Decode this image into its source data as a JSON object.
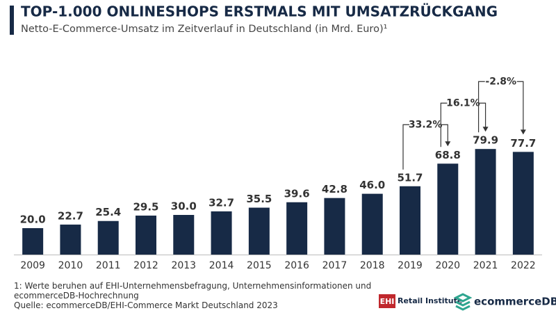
{
  "chart_data": {
    "type": "bar",
    "title": "TOP-1.000 ONLINESHOPS ERSTMALS MIT UMSATZRÜCKGANG",
    "subtitle": "Netto-E-Commerce-Umsatz im Zeitverlauf in Deutschland (in Mrd. Euro)¹",
    "categories": [
      "2009",
      "2010",
      "2011",
      "2012",
      "2013",
      "2014",
      "2015",
      "2016",
      "2017",
      "2018",
      "2019",
      "2020",
      "2021",
      "2022"
    ],
    "values": [
      20.0,
      22.7,
      25.4,
      29.5,
      30.0,
      32.7,
      35.5,
      39.6,
      42.8,
      46.0,
      51.7,
      68.8,
      79.9,
      77.7
    ],
    "value_labels": [
      "20.0",
      "22.7",
      "25.4",
      "29.5",
      "30.0",
      "32.7",
      "35.5",
      "39.6",
      "42.8",
      "46.0",
      "51.7",
      "68.8",
      "79.9",
      "77.7"
    ],
    "color": "#172a46",
    "ylim": [
      0,
      80
    ],
    "annotations": [
      {
        "value": 33.2,
        "label": "33.2%"
      },
      {
        "value": 16.1,
        "label": "16.1%"
      },
      {
        "value": -2.8,
        "label": "-2.8%"
      }
    ],
    "footnote": "1: Werte beruhen auf EHI-Unternehmensbefragung, Unternehmensinformationen und ecommerceDB-Hochrechnung",
    "source": "Quelle: ecommerceDB/EHI-Commerce Markt Deutschland 2023",
    "logos": {
      "ehi": "EHI",
      "ehi_name": "Retail Institute",
      "ecommercedb": "ecommerceDB"
    }
  }
}
